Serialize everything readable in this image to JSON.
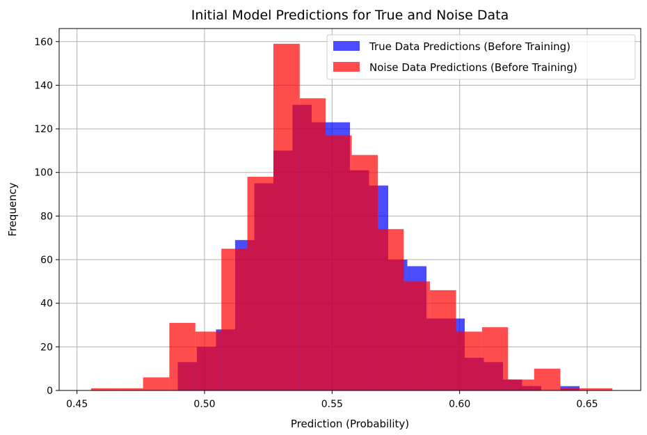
{
  "chart_data": {
    "type": "bar",
    "title": "Initial Model Predictions for True and Noise Data",
    "xlabel": "Prediction (Probability)",
    "ylabel": "Frequency",
    "xlim": [
      0.443,
      0.671
    ],
    "ylim": [
      0,
      166
    ],
    "xticks": [
      "0.45",
      "0.50",
      "0.55",
      "0.60",
      "0.65"
    ],
    "yticks": [
      "0",
      "20",
      "40",
      "60",
      "80",
      "100",
      "120",
      "140",
      "160"
    ],
    "grid": true,
    "legend_position": "top-right",
    "series": [
      {
        "name": "True Data Predictions (Before Training)",
        "color": "#0000ff",
        "alpha": 0.7,
        "bins": [
          {
            "x0": 0.4895,
            "x1": 0.497,
            "count": 13
          },
          {
            "x0": 0.497,
            "x1": 0.5045,
            "count": 20
          },
          {
            "x0": 0.5045,
            "x1": 0.512,
            "count": 28
          },
          {
            "x0": 0.512,
            "x1": 0.5195,
            "count": 69
          },
          {
            "x0": 0.5195,
            "x1": 0.527,
            "count": 95
          },
          {
            "x0": 0.527,
            "x1": 0.5345,
            "count": 110
          },
          {
            "x0": 0.5345,
            "x1": 0.542,
            "count": 131
          },
          {
            "x0": 0.542,
            "x1": 0.5495,
            "count": 123
          },
          {
            "x0": 0.5495,
            "x1": 0.557,
            "count": 123
          },
          {
            "x0": 0.557,
            "x1": 0.5645,
            "count": 101
          },
          {
            "x0": 0.5645,
            "x1": 0.572,
            "count": 94
          },
          {
            "x0": 0.572,
            "x1": 0.5795,
            "count": 60
          },
          {
            "x0": 0.5795,
            "x1": 0.587,
            "count": 57
          },
          {
            "x0": 0.587,
            "x1": 0.5945,
            "count": 33
          },
          {
            "x0": 0.5945,
            "x1": 0.602,
            "count": 33
          },
          {
            "x0": 0.602,
            "x1": 0.6095,
            "count": 15
          },
          {
            "x0": 0.6095,
            "x1": 0.617,
            "count": 13
          },
          {
            "x0": 0.617,
            "x1": 0.6245,
            "count": 5
          },
          {
            "x0": 0.6245,
            "x1": 0.632,
            "count": 2
          },
          {
            "x0": 0.632,
            "x1": 0.6395,
            "count": 0
          },
          {
            "x0": 0.6395,
            "x1": 0.647,
            "count": 2
          }
        ]
      },
      {
        "name": "Noise Data Predictions (Before Training)",
        "color": "#ff0000",
        "alpha": 0.7,
        "bins": [
          {
            "x0": 0.4555,
            "x1": 0.4657,
            "count": 1
          },
          {
            "x0": 0.4657,
            "x1": 0.4759,
            "count": 1
          },
          {
            "x0": 0.4759,
            "x1": 0.4862,
            "count": 6
          },
          {
            "x0": 0.4862,
            "x1": 0.4964,
            "count": 31
          },
          {
            "x0": 0.4964,
            "x1": 0.5066,
            "count": 27
          },
          {
            "x0": 0.5066,
            "x1": 0.5168,
            "count": 65
          },
          {
            "x0": 0.5168,
            "x1": 0.527,
            "count": 98
          },
          {
            "x0": 0.527,
            "x1": 0.5373,
            "count": 159
          },
          {
            "x0": 0.5373,
            "x1": 0.5475,
            "count": 134
          },
          {
            "x0": 0.5475,
            "x1": 0.5577,
            "count": 117
          },
          {
            "x0": 0.5577,
            "x1": 0.5679,
            "count": 108
          },
          {
            "x0": 0.5679,
            "x1": 0.5781,
            "count": 74
          },
          {
            "x0": 0.5781,
            "x1": 0.5884,
            "count": 50
          },
          {
            "x0": 0.5884,
            "x1": 0.5986,
            "count": 46
          },
          {
            "x0": 0.5986,
            "x1": 0.6088,
            "count": 27
          },
          {
            "x0": 0.6088,
            "x1": 0.619,
            "count": 29
          },
          {
            "x0": 0.619,
            "x1": 0.6292,
            "count": 5
          },
          {
            "x0": 0.6292,
            "x1": 0.6395,
            "count": 10
          },
          {
            "x0": 0.6395,
            "x1": 0.6497,
            "count": 1
          },
          {
            "x0": 0.6497,
            "x1": 0.6599,
            "count": 1
          }
        ]
      }
    ]
  }
}
